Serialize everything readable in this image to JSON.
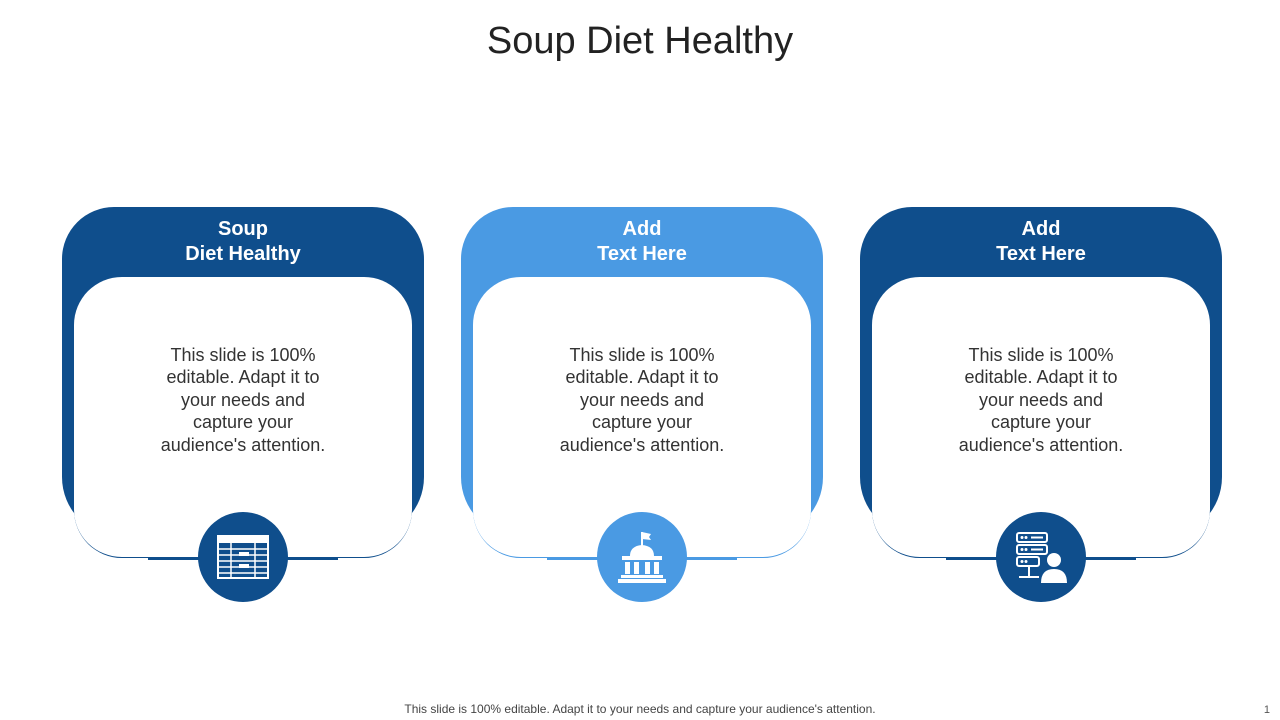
{
  "slide": {
    "title": "Soup Diet Healthy",
    "footer": "This slide is 100% editable. Adapt it to your needs and capture your audience's attention.",
    "page_number": "1"
  },
  "colors": {
    "dark_blue": "#0f4e8c",
    "light_blue": "#4a9ae3"
  },
  "cards": [
    {
      "header_line1": "Soup",
      "header_line2": "Diet Healthy",
      "body": "This slide is 100% editable. Adapt it to your needs and capture your audience's attention.",
      "color": "#0f4e8c",
      "icon": "spreadsheet-icon"
    },
    {
      "header_line1": "Add",
      "header_line2": "Text Here",
      "body": "This slide is 100% editable. Adapt it to your needs and capture your audience's attention.",
      "color": "#4a9ae3",
      "icon": "government-building-icon"
    },
    {
      "header_line1": "Add",
      "header_line2": "Text Here",
      "body": "This slide is 100% editable. Adapt it to your needs and capture your audience's attention.",
      "color": "#0f4e8c",
      "icon": "server-user-icon"
    }
  ]
}
